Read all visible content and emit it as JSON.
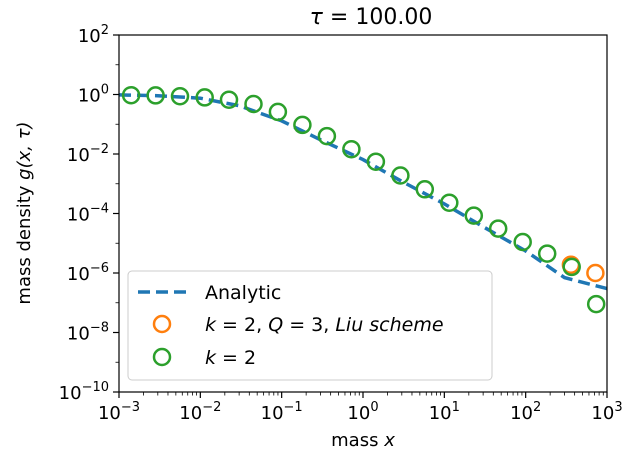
{
  "chart_data": {
    "type": "scatter",
    "title_prefix": "τ = ",
    "title_value": "100.00",
    "xlabel_prefix": "mass ",
    "xlabel_var": "x",
    "ylabel_prefix": "mass density ",
    "ylabel_var": "g(x, τ)",
    "xscale": "log",
    "yscale": "log",
    "xlim": [
      0.001,
      1000
    ],
    "ylim": [
      1e-10,
      100
    ],
    "x_ticks": [
      {
        "base": "10",
        "exp": "−3"
      },
      {
        "base": "10",
        "exp": "−2"
      },
      {
        "base": "10",
        "exp": "−1"
      },
      {
        "base": "10",
        "exp": "0"
      },
      {
        "base": "10",
        "exp": "1"
      },
      {
        "base": "10",
        "exp": "2"
      },
      {
        "base": "10",
        "exp": "3"
      }
    ],
    "y_ticks": [
      {
        "base": "10",
        "exp": "−10"
      },
      {
        "base": "10",
        "exp": "−8"
      },
      {
        "base": "10",
        "exp": "−6"
      },
      {
        "base": "10",
        "exp": "−4"
      },
      {
        "base": "10",
        "exp": "−2"
      },
      {
        "base": "10",
        "exp": "0"
      },
      {
        "base": "10",
        "exp": "2"
      }
    ],
    "legend_placement": "lower-left",
    "series": [
      {
        "name": "Analytic",
        "style": "dashed-line",
        "color": "#1f77b4",
        "x": [
          0.001,
          0.003,
          0.01,
          0.03,
          0.1,
          0.3,
          1,
          3,
          10,
          30,
          100,
          300,
          1000
        ],
        "y": [
          0.97,
          0.91,
          0.75,
          0.42,
          0.13,
          0.03,
          0.0065,
          0.0012,
          0.00021,
          3.6e-05,
          5.5e-06,
          7e-07,
          3e-07
        ]
      },
      {
        "name_parts": [
          "k",
          " = 2, ",
          "Q",
          " = 3, ",
          "Liu scheme"
        ],
        "style": "hollow-circle",
        "color": "#ff7f0e",
        "x": [
          360,
          720
        ],
        "y": [
          1.9e-06,
          1e-06
        ]
      },
      {
        "name_parts": [
          "k",
          " = 2"
        ],
        "style": "hollow-circle",
        "color": "#2ca02c",
        "x": [
          0.00141,
          0.00282,
          0.00563,
          0.0113,
          0.0225,
          0.045,
          0.09,
          0.18,
          0.36,
          0.72,
          1.44,
          2.88,
          5.76,
          11.5,
          23,
          46,
          92,
          184,
          368,
          737
        ],
        "y": [
          0.95,
          0.93,
          0.88,
          0.8,
          0.67,
          0.48,
          0.26,
          0.095,
          0.04,
          0.0145,
          0.0055,
          0.0019,
          0.00065,
          0.00023,
          8.5e-05,
          3.1e-05,
          1.1e-05,
          4.5e-06,
          1.6e-06,
          9e-08
        ]
      }
    ]
  }
}
